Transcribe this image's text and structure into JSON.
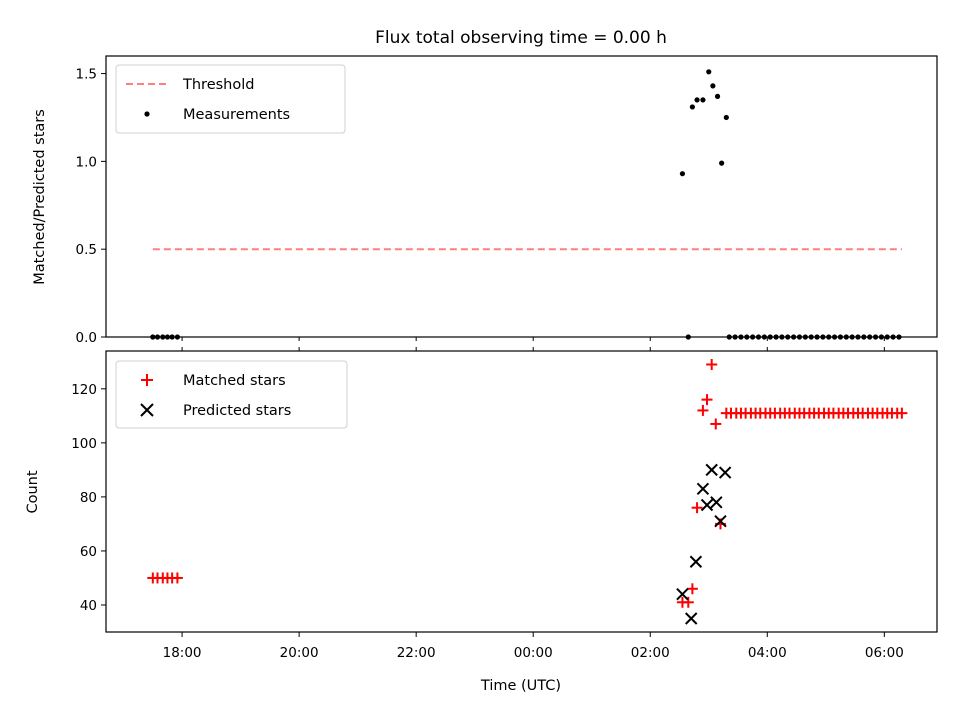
{
  "title": "Flux total observing time = 0.00 h",
  "colors": {
    "threshold": "#ff7f7f",
    "measurement": "#000000",
    "matched": "#ff0000",
    "predicted": "#000000"
  },
  "chart_data": [
    {
      "type": "scatter",
      "name": "ratio",
      "ylabel": "Matched/Predicted stars",
      "xlim": [
        16.7,
        30.9
      ],
      "ylim": [
        0,
        1.6
      ],
      "yticks": [
        0,
        0.5,
        1.0,
        1.5
      ],
      "ytick_labels": [
        "0.0",
        "0.5",
        "1.0",
        "1.5"
      ],
      "legend": [
        "Threshold",
        "Measurements"
      ],
      "threshold": {
        "value": 0.5,
        "x": [
          17.5,
          30.3
        ]
      },
      "measurements": {
        "x": [
          17.5,
          17.58,
          17.67,
          17.75,
          17.83,
          17.92,
          26.55,
          26.65,
          26.72,
          26.8,
          26.9,
          27.0,
          27.07,
          27.15,
          27.22,
          27.3,
          27.35,
          27.45,
          27.55,
          27.65,
          27.75,
          27.85,
          27.95,
          28.05,
          28.15,
          28.25,
          28.35,
          28.45,
          28.55,
          28.65,
          28.75,
          28.85,
          28.95,
          29.05,
          29.15,
          29.25,
          29.35,
          29.45,
          29.55,
          29.65,
          29.75,
          29.85,
          29.95,
          30.05,
          30.15,
          30.25
        ],
        "y": [
          0,
          0,
          0,
          0,
          0,
          0,
          0.93,
          0,
          1.31,
          1.35,
          1.35,
          1.51,
          1.43,
          1.37,
          0.99,
          1.25,
          0,
          0,
          0,
          0,
          0,
          0,
          0,
          0,
          0,
          0,
          0,
          0,
          0,
          0,
          0,
          0,
          0,
          0,
          0,
          0,
          0,
          0,
          0,
          0,
          0,
          0,
          0,
          0,
          0,
          0
        ]
      }
    },
    {
      "type": "scatter",
      "name": "counts",
      "xlabel": "Time (UTC)",
      "ylabel": "Count",
      "xlim": [
        16.7,
        30.9
      ],
      "ylim": [
        30,
        134
      ],
      "yticks": [
        40,
        60,
        80,
        100,
        120
      ],
      "ytick_labels": [
        "40",
        "60",
        "80",
        "100",
        "120"
      ],
      "xticks": [
        18,
        20,
        22,
        24,
        26,
        28,
        30
      ],
      "xtick_labels": [
        "18:00",
        "20:00",
        "22:00",
        "00:00",
        "02:00",
        "04:00",
        "06:00"
      ],
      "legend": [
        "Matched stars",
        "Predicted stars"
      ],
      "matched": {
        "x": [
          17.5,
          17.58,
          17.67,
          17.75,
          17.83,
          17.92,
          26.55,
          26.65,
          26.72,
          26.8,
          26.9,
          26.97,
          27.05,
          27.12,
          27.2,
          27.3,
          27.38,
          27.47,
          27.55,
          27.63,
          27.72,
          27.8,
          27.88,
          27.97,
          28.05,
          28.13,
          28.22,
          28.3,
          28.38,
          28.47,
          28.55,
          28.63,
          28.72,
          28.8,
          28.88,
          28.97,
          29.05,
          29.13,
          29.22,
          29.3,
          29.38,
          29.47,
          29.55,
          29.63,
          29.72,
          29.8,
          29.88,
          29.97,
          30.05,
          30.13,
          30.22,
          30.3
        ],
        "y": [
          50,
          50,
          50,
          50,
          50,
          50,
          41,
          41,
          46,
          76,
          112,
          116,
          129,
          107,
          70,
          111,
          111,
          111,
          111,
          111,
          111,
          111,
          111,
          111,
          111,
          111,
          111,
          111,
          111,
          111,
          111,
          111,
          111,
          111,
          111,
          111,
          111,
          111,
          111,
          111,
          111,
          111,
          111,
          111,
          111,
          111,
          111,
          111,
          111,
          111,
          111,
          111
        ]
      },
      "predicted": {
        "x": [
          26.55,
          26.7,
          26.78,
          26.9,
          26.97,
          27.05,
          27.13,
          27.2,
          27.28
        ],
        "y": [
          44,
          35,
          56,
          83,
          77,
          90,
          78,
          71,
          89
        ]
      }
    }
  ]
}
